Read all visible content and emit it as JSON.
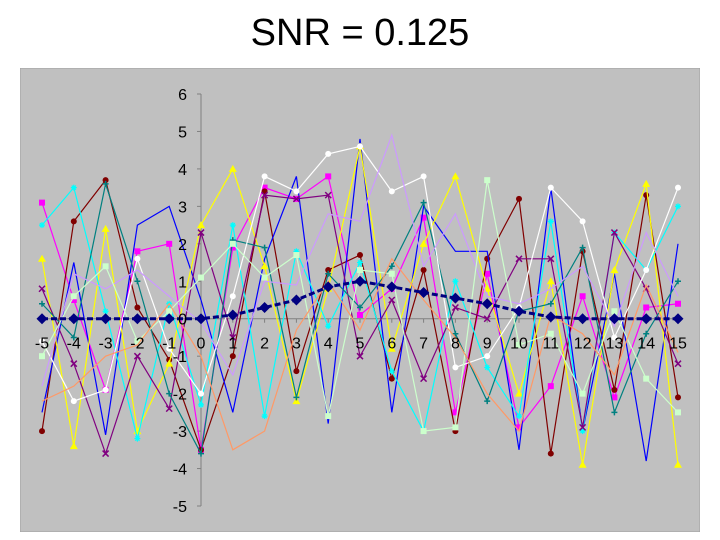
{
  "slide": {
    "title": "SNR = 0.125"
  },
  "chart_data": {
    "type": "line",
    "title": "SNR = 0.125",
    "xlabel": "",
    "ylabel": "",
    "xlim": [
      -5,
      15
    ],
    "ylim": [
      -5,
      6
    ],
    "x_ticks": [
      -5,
      -4,
      -3,
      -2,
      -1,
      0,
      1,
      2,
      3,
      4,
      5,
      6,
      7,
      8,
      9,
      10,
      11,
      12,
      13,
      14,
      15
    ],
    "y_ticks": [
      6,
      5,
      4,
      3,
      2,
      1,
      0,
      -1,
      -2,
      -3,
      -4,
      -5
    ],
    "grid": false,
    "legend": "none",
    "plot_background": "#c0c0c0",
    "x": [
      -5,
      -4,
      -3,
      -2,
      -1,
      0,
      1,
      2,
      3,
      4,
      5,
      6,
      7,
      8,
      9,
      10,
      11,
      12,
      13,
      14,
      15
    ],
    "series": [
      {
        "color": "#000080",
        "marker": "diamond",
        "highlight": true,
        "values": [
          0,
          0,
          0,
          0,
          0,
          0,
          0.1,
          0.3,
          0.5,
          0.85,
          1.0,
          0.85,
          0.7,
          0.55,
          0.4,
          0.2,
          0.05,
          0,
          0,
          0,
          0
        ]
      },
      {
        "color": "#ff00ff",
        "marker": "square",
        "values": [
          3.1,
          0.5,
          -1.9,
          1.8,
          2.0,
          -3.5,
          1.9,
          3.5,
          3.2,
          3.8,
          0.1,
          0.8,
          2.7,
          -2.5,
          1.2,
          -2.9,
          -1.8,
          0.6,
          -2.1,
          0.3,
          0.4
        ]
      },
      {
        "color": "#800000",
        "marker": "circle",
        "values": [
          -3.0,
          2.6,
          3.7,
          0.3,
          -1.1,
          -3.5,
          -1.0,
          3.4,
          -1.4,
          1.3,
          1.7,
          -1.6,
          1.3,
          -3.0,
          1.6,
          3.2,
          -3.6,
          1.8,
          -1.9,
          3.3,
          -2.1
        ]
      },
      {
        "color": "#0000ff",
        "marker": "none",
        "values": [
          -2.5,
          1.5,
          -3.1,
          2.5,
          3.0,
          0.5,
          -2.5,
          1.6,
          3.8,
          -2.8,
          4.8,
          -2.5,
          3.0,
          1.8,
          1.8,
          -3.5,
          3.5,
          -3.0,
          1.2,
          -3.8,
          2.0
        ]
      },
      {
        "color": "#ffff00",
        "marker": "triangle",
        "values": [
          1.6,
          -3.4,
          2.4,
          -3.0,
          -1.2,
          2.5,
          4.0,
          1.4,
          -2.2,
          0.8,
          4.6,
          -0.8,
          2.0,
          3.8,
          0.8,
          -2.0,
          1.0,
          -3.9,
          1.3,
          3.6,
          -3.9
        ]
      },
      {
        "color": "#00ffff",
        "marker": "star",
        "values": [
          2.5,
          3.5,
          0.2,
          -3.2,
          0.4,
          -2.3,
          2.5,
          -2.6,
          1.8,
          -0.2,
          1.5,
          -1.4,
          -3.0,
          1.0,
          -1.3,
          -2.6,
          2.6,
          -3.0,
          2.3,
          1.3,
          3.0
        ]
      },
      {
        "color": "#800080",
        "marker": "x",
        "values": [
          0.8,
          -1.2,
          -3.6,
          -1.0,
          -2.4,
          2.3,
          -0.5,
          3.3,
          3.2,
          3.3,
          -1.0,
          0.5,
          -1.6,
          0.3,
          0.0,
          1.6,
          1.6,
          -2.9,
          2.3,
          0.8,
          -1.2
        ]
      },
      {
        "color": "#008080",
        "marker": "plus",
        "values": [
          0.4,
          -0.5,
          3.6,
          1.0,
          -2.0,
          -3.6,
          2.1,
          1.9,
          -2.1,
          1.2,
          0.3,
          1.4,
          3.1,
          -0.4,
          -2.2,
          0.2,
          0.4,
          1.9,
          -2.5,
          -0.4,
          1.0
        ]
      },
      {
        "color": "#ffffff",
        "marker": "circle",
        "values": [
          -0.6,
          -2.2,
          -1.9,
          1.6,
          -0.8,
          -2.0,
          0.6,
          3.8,
          3.4,
          4.4,
          4.6,
          3.4,
          3.8,
          -1.3,
          -1.0,
          0.3,
          3.5,
          2.6,
          -0.5,
          1.3,
          3.5
        ]
      },
      {
        "color": "#cc99ff",
        "marker": "none",
        "values": [
          -1.8,
          1.2,
          0.8,
          1.3,
          0.6,
          -0.1,
          -1.5,
          1.0,
          0.9,
          2.8,
          2.6,
          4.9,
          1.4,
          2.8,
          0.6,
          0.4,
          0.8,
          1.4,
          -0.2,
          2.3,
          0.6
        ]
      },
      {
        "color": "#ccffcc",
        "marker": "square",
        "values": [
          -1.0,
          0.6,
          1.4,
          -0.6,
          0.2,
          1.1,
          2.0,
          1.1,
          1.7,
          -2.6,
          1.3,
          1.2,
          -3.0,
          -2.9,
          3.7,
          -0.7,
          -0.4,
          -2.0,
          0.2,
          -1.6,
          -2.5
        ]
      },
      {
        "color": "#ff9966",
        "marker": "none",
        "values": [
          -2.2,
          -1.8,
          -1.0,
          -0.7,
          0.4,
          -1.0,
          -3.5,
          -3.0,
          -0.3,
          1.0,
          -0.3,
          1.6,
          0.5,
          -0.5,
          -2.0,
          -3.0,
          0.1,
          -0.4,
          -1.5,
          0.9,
          -0.9
        ]
      }
    ]
  }
}
